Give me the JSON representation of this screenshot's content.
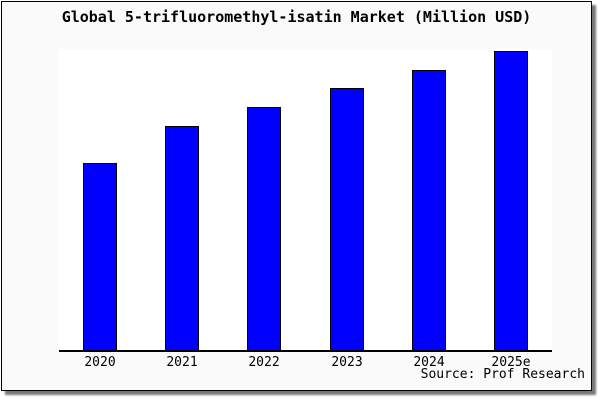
{
  "chart_data": {
    "type": "bar",
    "title": "Global 5-trifluoromethyl-isatin Market (Million USD)",
    "categories": [
      "2020",
      "2021",
      "2022",
      "2023",
      "2024",
      "2025e"
    ],
    "values": [
      100,
      120,
      130,
      140,
      150,
      160
    ],
    "values_note": "y-axis is unlabeled; values are relative estimates from bar heights (2020 = 100)",
    "xlabel": "",
    "ylabel": "",
    "ylim": [
      0,
      161
    ],
    "grid": false,
    "legend_position": "none",
    "source_label": "Source: Prof Research",
    "bar_color": "#0000ff",
    "bar_border_color": "#000000",
    "plot_background": "#ffffff",
    "frame_background": "#fafafa",
    "axis_color": "#000000"
  }
}
